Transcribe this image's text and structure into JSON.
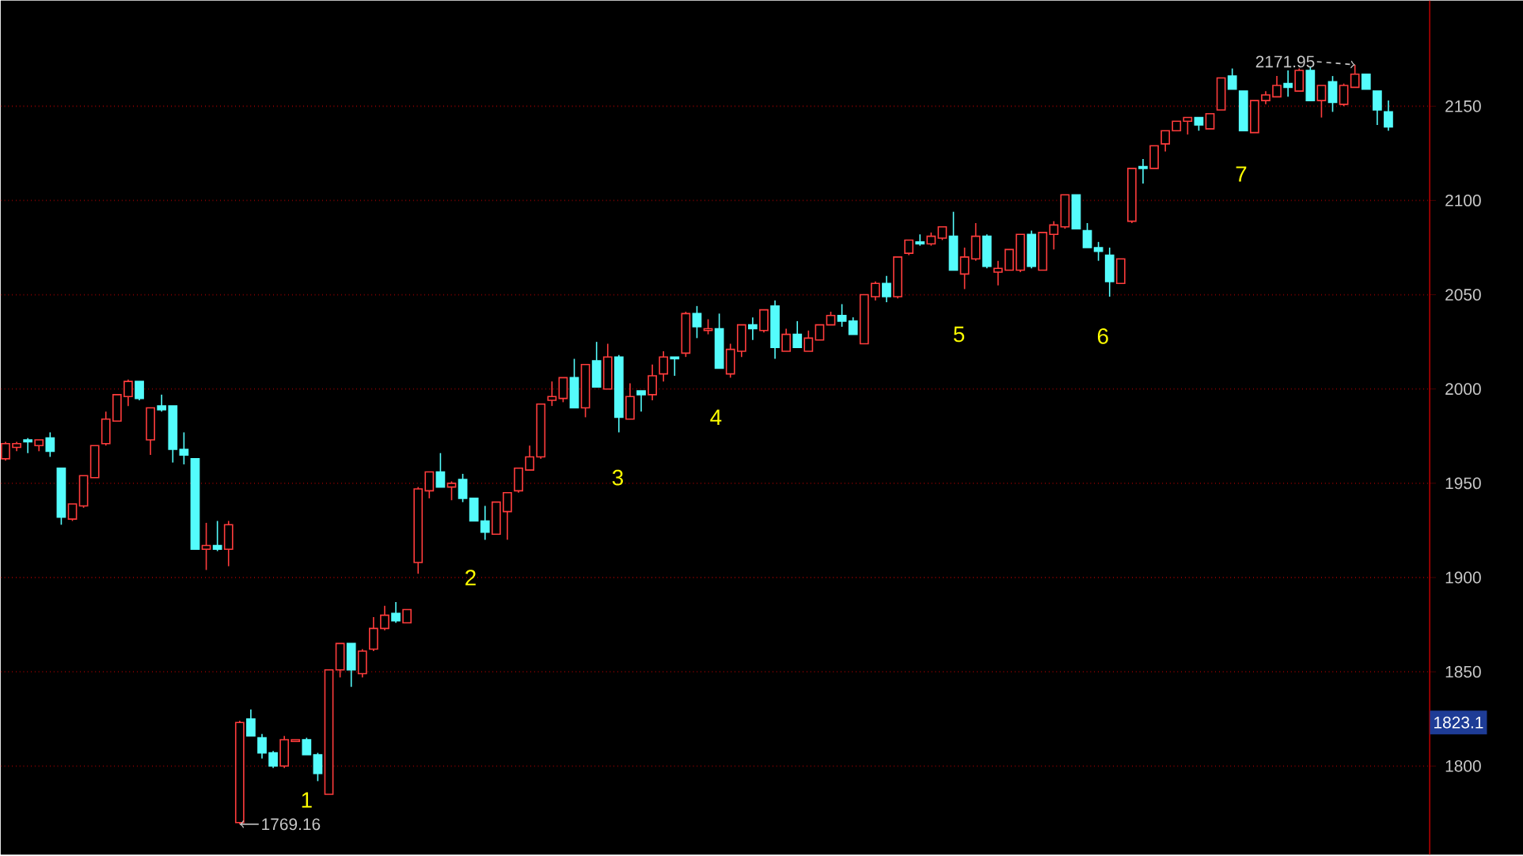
{
  "chart_data": {
    "type": "candlestick",
    "categories": [
      null,
      null,
      null,
      null,
      null,
      null,
      null,
      null,
      null,
      null,
      null,
      null,
      null,
      null,
      null,
      null,
      null,
      null,
      null,
      null,
      null,
      null,
      null,
      null,
      null,
      null,
      null,
      null,
      null,
      null,
      null,
      null,
      null,
      null,
      null,
      null,
      null,
      null,
      null,
      null,
      null,
      null,
      null,
      null,
      null,
      null,
      null,
      null,
      null,
      null,
      null,
      null,
      null,
      null,
      null,
      null,
      null,
      null,
      null,
      null,
      null,
      null,
      null,
      null,
      null,
      null,
      null,
      null,
      null,
      null,
      null,
      null,
      null,
      null,
      null,
      null,
      null,
      null,
      null,
      null,
      null,
      null,
      null,
      null,
      null,
      null,
      null,
      null,
      null,
      null,
      null,
      null,
      null,
      null,
      null,
      null,
      null,
      null,
      null,
      null,
      null,
      null,
      null,
      null,
      null,
      null,
      null,
      null,
      null,
      null,
      null,
      null,
      null,
      null,
      null,
      null,
      null,
      null,
      null,
      null,
      null,
      null,
      null,
      null,
      null
    ],
    "ohlc": [
      [
        1963,
        1972,
        1962,
        1971
      ],
      [
        1969,
        1972,
        1967,
        1971
      ],
      [
        1973,
        1974,
        1966,
        1972
      ],
      [
        1970,
        1973,
        1967,
        1973
      ],
      [
        1974,
        1977,
        1964,
        1967
      ],
      [
        1958,
        1958,
        1928,
        1932
      ],
      [
        1931,
        1939,
        1930,
        1939
      ],
      [
        1938,
        1954,
        1937,
        1954
      ],
      [
        1953,
        1970,
        1953,
        1970
      ],
      [
        1971,
        1988,
        1970,
        1984
      ],
      [
        1983,
        1997,
        1983,
        1997
      ],
      [
        1996,
        2005,
        1991,
        2004
      ],
      [
        2004,
        2004,
        1994,
        1995
      ],
      [
        1973,
        1990,
        1965,
        1990
      ],
      [
        1991,
        1997,
        1988,
        1989
      ],
      [
        1991,
        1991,
        1961,
        1968
      ],
      [
        1968,
        1977,
        1960,
        1965
      ],
      [
        1963,
        1963,
        1915,
        1915
      ],
      [
        1915,
        1929,
        1904,
        1917
      ],
      [
        1917,
        1930,
        1914,
        1915
      ],
      [
        1915,
        1930,
        1906,
        1928
      ],
      [
        1770,
        1824,
        1769.16,
        1823.1
      ],
      [
        1825,
        1830,
        1816,
        1816
      ],
      [
        1815,
        1817,
        1804,
        1807
      ],
      [
        1807,
        1808,
        1799,
        1800
      ],
      [
        1800,
        1816,
        1799,
        1814
      ],
      [
        1813,
        1814,
        1813,
        1814
      ],
      [
        1814,
        1815,
        1806,
        1806
      ],
      [
        1806,
        1807,
        1792,
        1796
      ],
      [
        1785,
        1851,
        1785,
        1851
      ],
      [
        1851,
        1865,
        1847,
        1865
      ],
      [
        1865,
        1865,
        1842,
        1851
      ],
      [
        1849,
        1862,
        1847,
        1861
      ],
      [
        1862,
        1879,
        1861,
        1873
      ],
      [
        1873,
        1885,
        1872,
        1880
      ],
      [
        1881,
        1887,
        1876,
        1877
      ],
      [
        1876,
        1883,
        1876,
        1883
      ],
      [
        1908,
        1948,
        1902,
        1947
      ],
      [
        1946,
        1956,
        1942,
        1956
      ],
      [
        1956,
        1966,
        1948,
        1948
      ],
      [
        1948,
        1951,
        1941,
        1950
      ],
      [
        1952,
        1955,
        1940,
        1942
      ],
      [
        1942,
        1942,
        1930,
        1930
      ],
      [
        1930,
        1938,
        1920,
        1924
      ],
      [
        1923,
        1940,
        1923,
        1940
      ],
      [
        1935,
        1945,
        1920,
        1945
      ],
      [
        1946,
        1958,
        1945,
        1958
      ],
      [
        1957,
        1970,
        1957,
        1964
      ],
      [
        1964,
        1992,
        1963,
        1992
      ],
      [
        1994,
        2004,
        1991,
        1996
      ],
      [
        1995,
        2006,
        1993,
        2006
      ],
      [
        2006,
        2016,
        1990,
        1990
      ],
      [
        1990,
        2013,
        1985,
        2013
      ],
      [
        2015,
        2025,
        2001,
        2001
      ],
      [
        2000,
        2024,
        2000,
        2017
      ],
      [
        2017,
        2018,
        1977,
        1985
      ],
      [
        1984,
        2003,
        1984,
        1996
      ],
      [
        1999,
        1999,
        1988,
        1997
      ],
      [
        1997,
        2013,
        1994,
        2007
      ],
      [
        2008,
        2020,
        2004,
        2017
      ],
      [
        2017,
        2017,
        2007,
        2016
      ],
      [
        2019,
        2041,
        2017,
        2040
      ],
      [
        2040,
        2044,
        2027,
        2033
      ],
      [
        2031,
        2037,
        2029,
        2032
      ],
      [
        2032,
        2040,
        2011,
        2011
      ],
      [
        2008,
        2024,
        2006,
        2021
      ],
      [
        2020,
        2034,
        2017,
        2034
      ],
      [
        2034,
        2038,
        2026,
        2032
      ],
      [
        2031,
        2042,
        2030,
        2042
      ],
      [
        2044,
        2047,
        2016,
        2022
      ],
      [
        2020,
        2032,
        2020,
        2029
      ],
      [
        2029,
        2036,
        2022,
        2022
      ],
      [
        2020,
        2031,
        2020,
        2027
      ],
      [
        2026,
        2034,
        2026,
        2034
      ],
      [
        2034,
        2041,
        2034,
        2039
      ],
      [
        2039,
        2045,
        2033,
        2036
      ],
      [
        2036,
        2038,
        2029,
        2029
      ],
      [
        2024,
        2050,
        2024,
        2050
      ],
      [
        2049,
        2057,
        2047,
        2056
      ],
      [
        2056,
        2060,
        2046,
        2049
      ],
      [
        2049,
        2070,
        2048,
        2070
      ],
      [
        2072,
        2079,
        2071,
        2079
      ],
      [
        2078,
        2082,
        2076,
        2077
      ],
      [
        2077,
        2083,
        2076,
        2081
      ],
      [
        2080,
        2086,
        2079,
        2086
      ],
      [
        2081,
        2094,
        2063,
        2063
      ],
      [
        2061,
        2075,
        2053,
        2070
      ],
      [
        2069,
        2088,
        2068,
        2081
      ],
      [
        2081,
        2082,
        2064,
        2065
      ],
      [
        2062,
        2068,
        2055,
        2064
      ],
      [
        2063,
        2074,
        2063,
        2074
      ],
      [
        2063,
        2082,
        2062,
        2082
      ],
      [
        2082,
        2084,
        2064,
        2065
      ],
      [
        2063,
        2083,
        2063,
        2083
      ],
      [
        2082,
        2089,
        2074,
        2087
      ],
      [
        2086,
        2103,
        2085,
        2103
      ],
      [
        2103,
        2103,
        2085,
        2085
      ],
      [
        2084,
        2088,
        2075,
        2075
      ],
      [
        2075,
        2078,
        2068,
        2073
      ],
      [
        2071,
        2075,
        2049,
        2057
      ],
      [
        2056,
        2069,
        2056,
        2069
      ],
      [
        2089,
        2117,
        2088,
        2117
      ],
      [
        2118,
        2122,
        2109,
        2117
      ],
      [
        2117,
        2129,
        2117,
        2129
      ],
      [
        2130,
        2137,
        2126,
        2137
      ],
      [
        2137,
        2142,
        2137,
        2142
      ],
      [
        2142,
        2144,
        2135,
        2144
      ],
      [
        2144,
        2144,
        2137,
        2140
      ],
      [
        2138,
        2146,
        2138,
        2146
      ],
      [
        2148,
        2165,
        2148,
        2165
      ],
      [
        2166,
        2170,
        2159,
        2159
      ],
      [
        2158,
        2158,
        2137,
        2137
      ],
      [
        2136,
        2153,
        2136,
        2153
      ],
      [
        2153,
        2158,
        2151,
        2156
      ],
      [
        2155,
        2166,
        2155,
        2161
      ],
      [
        2162,
        2169,
        2155,
        2160
      ],
      [
        2158,
        2170,
        2158,
        2169
      ],
      [
        2169,
        2171,
        2153,
        2153
      ],
      [
        2153,
        2161,
        2144,
        2161
      ],
      [
        2163,
        2166,
        2147,
        2152
      ],
      [
        2151,
        2162,
        2150,
        2161
      ],
      [
        2160,
        2171.95,
        2160,
        2167
      ],
      [
        2167,
        2167,
        2159,
        2159
      ],
      [
        2158,
        2158,
        2140,
        2148
      ],
      [
        2147,
        2153,
        2137,
        2139
      ]
    ],
    "colors": [
      "#ff3c3c",
      "#ff3c3c",
      "#54fcfc",
      "#ff3c3c",
      "#54fcfc",
      "#54fcfc",
      "#ff3c3c",
      "#ff3c3c",
      "#ff3c3c",
      "#ff3c3c",
      "#ff3c3c",
      "#ff3c3c",
      "#54fcfc",
      "#ff3c3c",
      "#54fcfc",
      "#54fcfc",
      "#54fcfc",
      "#54fcfc",
      "#ff3c3c",
      "#54fcfc",
      "#ff3c3c",
      "#ff3c3c",
      "#54fcfc",
      "#54fcfc",
      "#54fcfc",
      "#ff3c3c",
      "#ff3c3c",
      "#54fcfc",
      "#54fcfc",
      "#ff3c3c",
      "#ff3c3c",
      "#54fcfc",
      "#ff3c3c",
      "#ff3c3c",
      "#ff3c3c",
      "#54fcfc",
      "#ff3c3c",
      "#ff3c3c",
      "#ff3c3c",
      "#54fcfc",
      "#ff3c3c",
      "#54fcfc",
      "#54fcfc",
      "#54fcfc",
      "#ff3c3c",
      "#ff3c3c",
      "#ff3c3c",
      "#ff3c3c",
      "#ff3c3c",
      "#ff3c3c",
      "#ff3c3c",
      "#54fcfc",
      "#ff3c3c",
      "#54fcfc",
      "#ff3c3c",
      "#54fcfc",
      "#ff3c3c",
      "#54fcfc",
      "#ff3c3c",
      "#ff3c3c",
      "#54fcfc",
      "#ff3c3c",
      "#54fcfc",
      "#ff3c3c",
      "#54fcfc",
      "#ff3c3c",
      "#ff3c3c",
      "#54fcfc",
      "#ff3c3c",
      "#54fcfc",
      "#ff3c3c",
      "#54fcfc",
      "#ff3c3c",
      "#ff3c3c",
      "#ff3c3c",
      "#54fcfc",
      "#54fcfc",
      "#ff3c3c",
      "#ff3c3c",
      "#54fcfc",
      "#ff3c3c",
      "#ff3c3c",
      "#54fcfc",
      "#ff3c3c",
      "#ff3c3c",
      "#54fcfc",
      "#ff3c3c",
      "#ff3c3c",
      "#54fcfc",
      "#ff3c3c",
      "#ff3c3c",
      "#ff3c3c",
      "#54fcfc",
      "#ff3c3c",
      "#ff3c3c",
      "#ff3c3c",
      "#54fcfc",
      "#54fcfc",
      "#54fcfc",
      "#54fcfc",
      "#ff3c3c",
      "#ff3c3c",
      "#54fcfc",
      "#ff3c3c",
      "#ff3c3c",
      "#ff3c3c",
      "#ff3c3c",
      "#54fcfc",
      "#ff3c3c",
      "#ff3c3c",
      "#54fcfc",
      "#54fcfc",
      "#ff3c3c",
      "#ff3c3c",
      "#ff3c3c",
      "#54fcfc",
      "#ff3c3c",
      "#54fcfc",
      "#ff3c3c",
      "#54fcfc",
      "#ff3c3c",
      "#ff3c3c",
      "#54fcfc",
      "#54fcfc",
      "#54fcfc"
    ],
    "ylim": [
      1753,
      2206
    ],
    "yticks": [
      1800,
      1850,
      1900,
      1950,
      2000,
      2050,
      2100,
      2150
    ],
    "grid": "y",
    "annotations": [
      "1769.16",
      {
        "text": "2171.95",
        "y": 2171.95
      },
      "1823.1",
      "1",
      "2",
      "3",
      "4",
      "5",
      "6",
      "7"
    ]
  }
}
